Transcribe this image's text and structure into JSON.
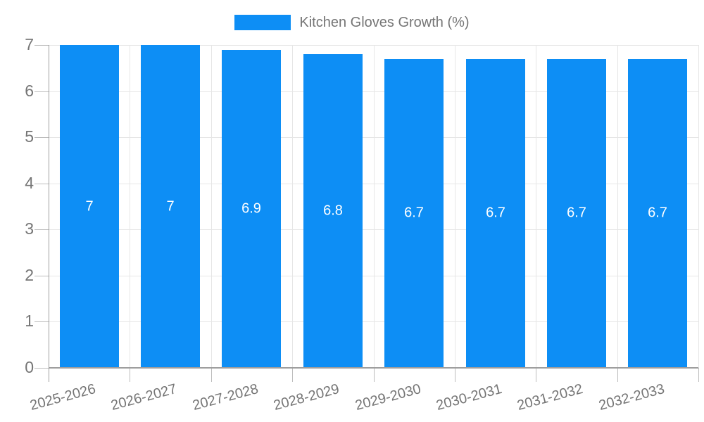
{
  "legend": {
    "label": "Kitchen Gloves Growth (%)",
    "swatch_color": "#0d8ef5"
  },
  "chart_data": {
    "type": "bar",
    "title": "Kitchen Gloves Growth (%)",
    "categories": [
      "2025-2026",
      "2026-2027",
      "2027-2028",
      "2028-2029",
      "2029-2030",
      "2030-2031",
      "2031-2032",
      "2032-2033"
    ],
    "values": [
      7,
      7,
      6.9,
      6.8,
      6.7,
      6.7,
      6.7,
      6.7
    ],
    "data_labels": [
      "7",
      "7",
      "6.9",
      "6.8",
      "6.7",
      "6.7",
      "6.7",
      "6.7"
    ],
    "xlabel": "",
    "ylabel": "",
    "ylim": [
      0,
      7
    ],
    "yticks": [
      0,
      1,
      2,
      3,
      4,
      5,
      6,
      7
    ],
    "grid": true,
    "legend_position": "top-center",
    "bar_color": "#0d8ef5",
    "bar_label_color": "#ffffff",
    "axis_text_color": "#757575",
    "gridline_color": "#e6e6e6",
    "tick_mark_color": "#bdbdbd",
    "axis_line_color": "#9e9e9e"
  }
}
